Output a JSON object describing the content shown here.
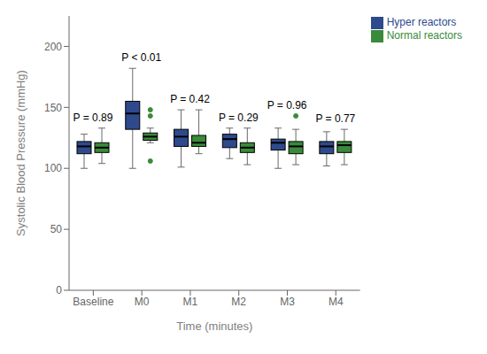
{
  "chart_data": {
    "type": "box",
    "xlabel": "Time (minutes)",
    "ylabel": "Systolic Blood Pressure (mmHg)",
    "categories": [
      "Baseline",
      "M0",
      "M1",
      "M2",
      "M3",
      "M4"
    ],
    "series": [
      {
        "name": "Hyper reactors",
        "color": "#2E4A8C",
        "boxes": [
          {
            "whislo": 100,
            "q1": 112,
            "med": 118,
            "q3": 122,
            "whishi": 128,
            "fliers": []
          },
          {
            "whislo": 100,
            "q1": 132,
            "med": 145,
            "q3": 155,
            "whishi": 182,
            "fliers": []
          },
          {
            "whislo": 101,
            "q1": 118,
            "med": 126,
            "q3": 132,
            "whishi": 148,
            "fliers": []
          },
          {
            "whislo": 108,
            "q1": 117,
            "med": 124,
            "q3": 128,
            "whishi": 133,
            "fliers": []
          },
          {
            "whislo": 100,
            "q1": 115,
            "med": 121,
            "q3": 124,
            "whishi": 133,
            "fliers": []
          },
          {
            "whislo": 102,
            "q1": 112,
            "med": 118,
            "q3": 122,
            "whishi": 130,
            "fliers": []
          }
        ]
      },
      {
        "name": "Normal reactors",
        "color": "#3A8A3A",
        "boxes": [
          {
            "whislo": 104,
            "q1": 113,
            "med": 117,
            "q3": 121,
            "whishi": 133,
            "fliers": []
          },
          {
            "whislo": 121,
            "q1": 123,
            "med": 126,
            "q3": 129,
            "whishi": 133,
            "fliers": [
              106,
              143,
              148
            ]
          },
          {
            "whislo": 112,
            "q1": 118,
            "med": 121,
            "q3": 127,
            "whishi": 148,
            "fliers": []
          },
          {
            "whislo": 103,
            "q1": 113,
            "med": 117,
            "q3": 121,
            "whishi": 133,
            "fliers": []
          },
          {
            "whislo": 103,
            "q1": 112,
            "med": 118,
            "q3": 122,
            "whishi": 132,
            "fliers": [
              143
            ]
          },
          {
            "whislo": 103,
            "q1": 113,
            "med": 119,
            "q3": 122,
            "whishi": 132,
            "fliers": []
          }
        ]
      }
    ],
    "annotations": [
      "P = 0.89",
      "P < 0.01",
      "P = 0.42",
      "P = 0.29",
      "P = 0.96",
      "P = 0.77"
    ],
    "ylim": [
      0,
      225
    ],
    "yticks": [
      0,
      50,
      100,
      150,
      200
    ],
    "grid": false,
    "legend": "upper right"
  }
}
